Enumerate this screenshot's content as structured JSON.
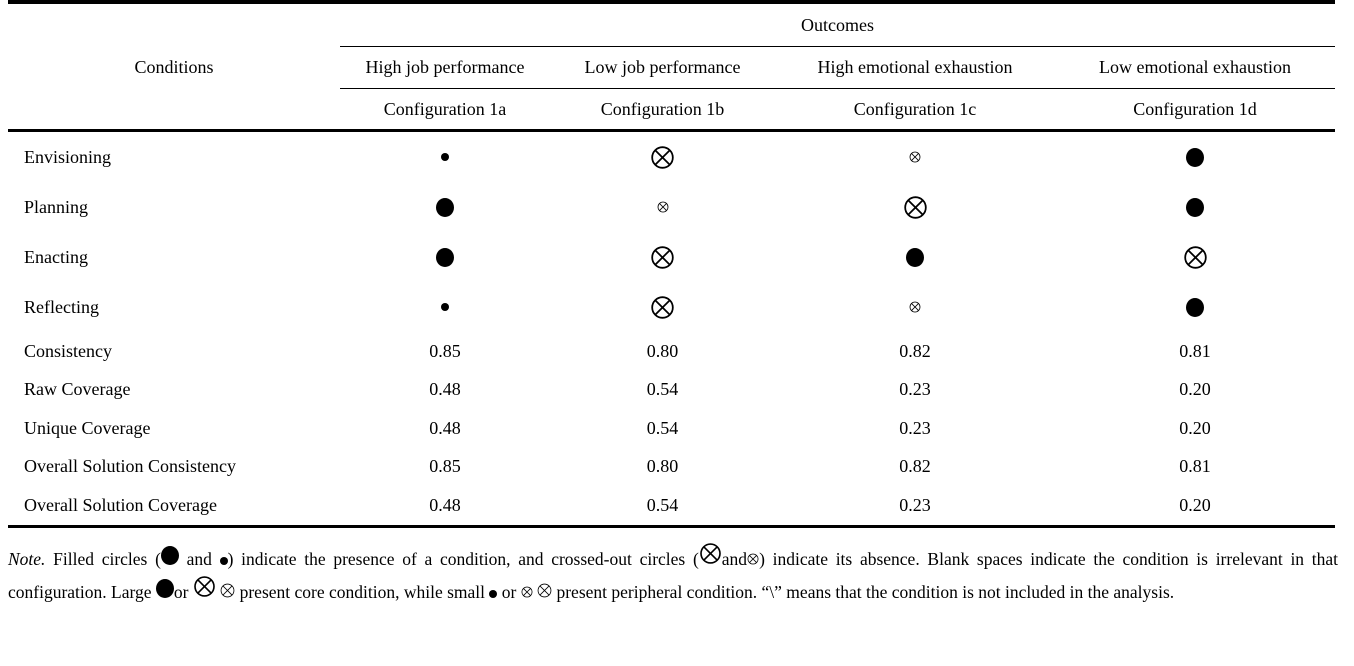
{
  "table": {
    "outcomes_label": "Outcomes",
    "conditions_label": "Conditions",
    "column_headers": [
      "High job performance",
      "Low job performance",
      "High emotional exhaustion",
      "Low emotional exhaustion"
    ],
    "config_headers": [
      "Configuration 1a",
      "Configuration 1b",
      "Configuration 1c",
      "Configuration 1d"
    ],
    "rows": [
      {
        "label": "Envisioning",
        "type": "symbol",
        "cells": [
          "small-filled",
          "large-crossed",
          "small-crossed",
          "large-filled"
        ]
      },
      {
        "label": "Planning",
        "type": "symbol",
        "cells": [
          "large-filled",
          "small-crossed",
          "large-crossed",
          "large-filled"
        ]
      },
      {
        "label": "Enacting",
        "type": "symbol",
        "cells": [
          "large-filled",
          "large-crossed",
          "large-filled",
          "large-crossed"
        ]
      },
      {
        "label": "Reflecting",
        "type": "symbol",
        "cells": [
          "small-filled",
          "large-crossed",
          "small-crossed",
          "large-filled"
        ]
      },
      {
        "label": "Consistency",
        "type": "value",
        "cells": [
          "0.85",
          "0.80",
          "0.82",
          "0.81"
        ]
      },
      {
        "label": "Raw Coverage",
        "type": "value",
        "cells": [
          "0.48",
          "0.54",
          "0.23",
          "0.20"
        ]
      },
      {
        "label": "Unique Coverage",
        "type": "value",
        "cells": [
          "0.48",
          "0.54",
          "0.23",
          "0.20"
        ]
      },
      {
        "label": "Overall Solution Consistency",
        "type": "value",
        "cells": [
          "0.85",
          "0.80",
          "0.82",
          "0.81"
        ]
      },
      {
        "label": "Overall Solution Coverage",
        "type": "value",
        "cells": [
          "0.48",
          "0.54",
          "0.23",
          "0.20"
        ]
      }
    ]
  },
  "note": {
    "segments": [
      {
        "t": "italic",
        "v": "Note."
      },
      {
        "t": "text",
        "v": " Filled circles ("
      },
      {
        "t": "sym",
        "v": "note-large-filled"
      },
      {
        "t": "text",
        "v": " and "
      },
      {
        "t": "sym",
        "v": "note-small-filled"
      },
      {
        "t": "text",
        "v": ") indicate the presence of a condition, and crossed-out circles ("
      },
      {
        "t": "sym",
        "v": "note-large-crossed"
      },
      {
        "t": "text",
        "v": "and"
      },
      {
        "t": "sym",
        "v": "note-small-crossed"
      },
      {
        "t": "text",
        "v": ") indicate its absence. Blank spaces indicate the condition is irrelevant in that configuration. Large "
      },
      {
        "t": "sym",
        "v": "note-large-filled"
      },
      {
        "t": "text",
        "v": "or "
      },
      {
        "t": "sym",
        "v": "note-large-crossed"
      },
      {
        "t": "text",
        "v": " "
      },
      {
        "t": "sym",
        "v": "note-med-crossed"
      },
      {
        "t": "text",
        "v": " present core condition, while small "
      },
      {
        "t": "sym",
        "v": "note-small-filled"
      },
      {
        "t": "text",
        "v": " or "
      },
      {
        "t": "sym",
        "v": "note-small-crossed"
      },
      {
        "t": "text",
        "v": " "
      },
      {
        "t": "sym",
        "v": "note-med-crossed"
      },
      {
        "t": "text",
        "v": " present peripheral condition. “\\” means that the condition is not included in the analysis."
      }
    ]
  }
}
